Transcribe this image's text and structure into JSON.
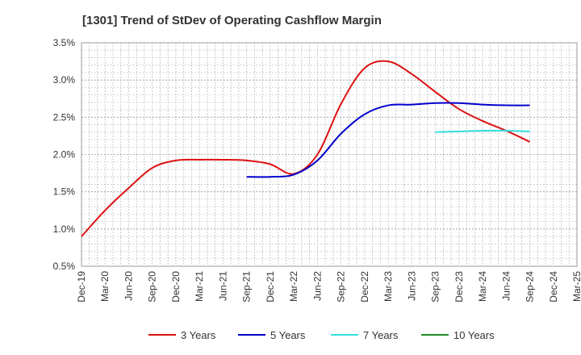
{
  "chart_data": {
    "type": "line",
    "title": "[1301]  Trend of StDev of Operating Cashflow Margin",
    "xlabel": "",
    "ylabel": "",
    "x_ticks": [
      "Dec-19",
      "Mar-20",
      "Jun-20",
      "Sep-20",
      "Dec-20",
      "Mar-21",
      "Jun-21",
      "Sep-21",
      "Dec-21",
      "Mar-22",
      "Jun-22",
      "Sep-22",
      "Dec-22",
      "Mar-23",
      "Jun-23",
      "Sep-23",
      "Dec-23",
      "Mar-24",
      "Jun-24",
      "Sep-24",
      "Dec-24",
      "Mar-25"
    ],
    "y_ticks": [
      "0.5%",
      "1.0%",
      "1.5%",
      "2.0%",
      "2.5%",
      "3.0%",
      "3.5%"
    ],
    "ylim": [
      0.5,
      3.5
    ],
    "grid": true,
    "legend_position": "bottom",
    "series": [
      {
        "name": "3 Years",
        "color": "#dd1111",
        "x": [
          "Dec-19",
          "Mar-20",
          "Jun-20",
          "Sep-20",
          "Dec-20",
          "Mar-21",
          "Jun-21",
          "Sep-21",
          "Dec-21",
          "Mar-22",
          "Jun-22",
          "Sep-22",
          "Dec-22",
          "Mar-23",
          "Jun-23",
          "Sep-23",
          "Dec-23",
          "Mar-24",
          "Jun-24",
          "Sep-24"
        ],
        "values": [
          0.9,
          1.25,
          1.55,
          1.82,
          1.92,
          1.93,
          1.93,
          1.92,
          1.87,
          1.74,
          2.0,
          2.68,
          3.16,
          3.25,
          3.08,
          2.84,
          2.61,
          2.45,
          2.32,
          2.17
        ]
      },
      {
        "name": "5 Years",
        "color": "#0000cc",
        "x": [
          "Sep-21",
          "Dec-21",
          "Mar-22",
          "Jun-22",
          "Sep-22",
          "Dec-22",
          "Mar-23",
          "Jun-23",
          "Sep-23",
          "Dec-23",
          "Mar-24",
          "Jun-24",
          "Sep-24"
        ],
        "values": [
          1.7,
          1.7,
          1.73,
          1.92,
          2.28,
          2.54,
          2.66,
          2.67,
          2.69,
          2.69,
          2.67,
          2.66,
          2.66
        ]
      },
      {
        "name": "7 Years",
        "color": "#33dddd",
        "x": [
          "Sep-23",
          "Dec-23",
          "Mar-24",
          "Jun-24",
          "Sep-24"
        ],
        "values": [
          2.3,
          2.31,
          2.32,
          2.32,
          2.31
        ]
      },
      {
        "name": "10 Years",
        "color": "#228822",
        "x": [],
        "values": []
      }
    ]
  }
}
